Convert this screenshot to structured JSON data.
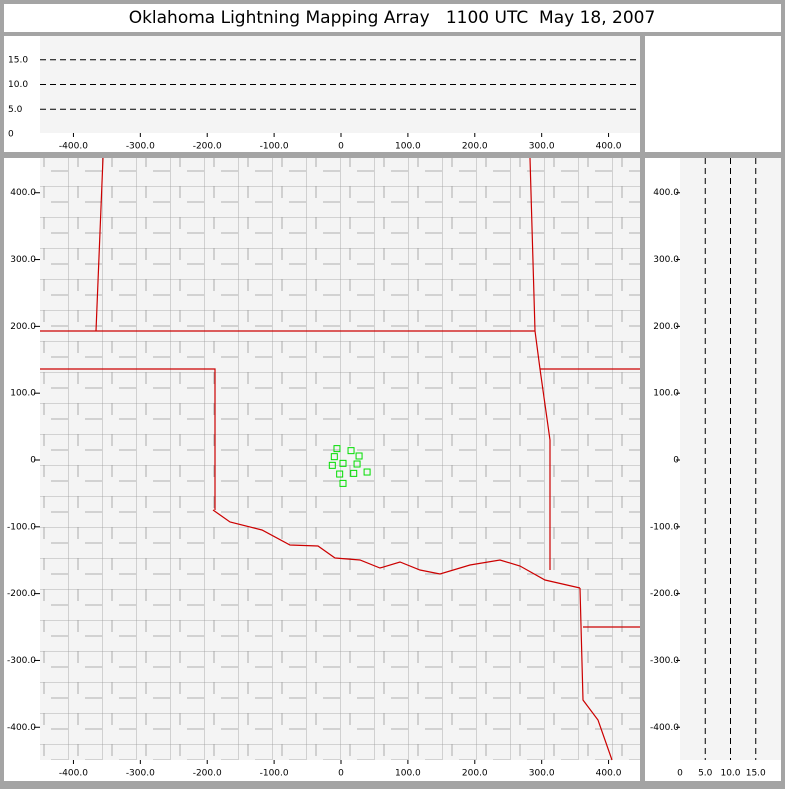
{
  "title": "Oklahoma Lightning Mapping Array   1100 UTC  May 18, 2007",
  "altitude_panel": {
    "xlim": [
      -450,
      447
    ],
    "zlim": [
      0,
      20
    ],
    "xticks": [
      {
        "value": -400,
        "label": "-400.0"
      },
      {
        "value": -300,
        "label": "-300.0"
      },
      {
        "value": -200,
        "label": "-200.0"
      },
      {
        "value": -100,
        "label": "-100.0"
      },
      0,
      {
        "value": 100,
        "label": "100.0"
      },
      {
        "value": 200,
        "label": "200.0"
      },
      {
        "value": 300,
        "label": "300.0"
      },
      {
        "value": 400,
        "label": "400.0"
      }
    ],
    "zticks": [
      0,
      {
        "value": 5,
        "label": "5.0"
      },
      {
        "value": 10,
        "label": "10.0"
      },
      {
        "value": 15,
        "label": "15.0"
      }
    ],
    "grid": true
  },
  "plan_view": {
    "xlim": [
      -450,
      447
    ],
    "ylim": [
      -449,
      452
    ],
    "xticks": [
      {
        "value": -400,
        "label": "-400.0"
      },
      {
        "value": -300,
        "label": "-300.0"
      },
      {
        "value": -200,
        "label": "-200.0"
      },
      {
        "value": -100,
        "label": "-100.0"
      },
      0,
      {
        "value": 100,
        "label": "100.0"
      },
      {
        "value": 200,
        "label": "200.0"
      },
      {
        "value": 300,
        "label": "300.0"
      },
      {
        "value": 400,
        "label": "400.0"
      }
    ],
    "yticks": [
      {
        "value": 400,
        "label": "400.0"
      },
      {
        "value": 300,
        "label": "300.0"
      },
      {
        "value": 200,
        "label": "200.0"
      },
      {
        "value": 100,
        "label": "100.0"
      },
      0,
      {
        "value": -100,
        "label": "-100.0"
      },
      {
        "value": -200,
        "label": "-200.0"
      },
      {
        "value": -300,
        "label": "-300.0"
      },
      {
        "value": -400,
        "label": "-400.0"
      }
    ],
    "source_color": "#00dd00",
    "sources": {
      "x": [
        -6,
        15,
        -10,
        27,
        3,
        -13,
        24,
        19,
        -2,
        39,
        3
      ],
      "y": [
        17,
        14,
        5,
        6,
        -5,
        -8,
        -6,
        -20,
        -21,
        -18,
        -35
      ]
    }
  },
  "side_panel": {
    "zlim": [
      0,
      20
    ],
    "ylim": [
      -449,
      452
    ],
    "zticks": [
      0,
      {
        "value": 5,
        "label": "5.0"
      },
      {
        "value": 10,
        "label": "10.0"
      },
      {
        "value": 15,
        "label": "15.0"
      }
    ],
    "grid": true
  }
}
